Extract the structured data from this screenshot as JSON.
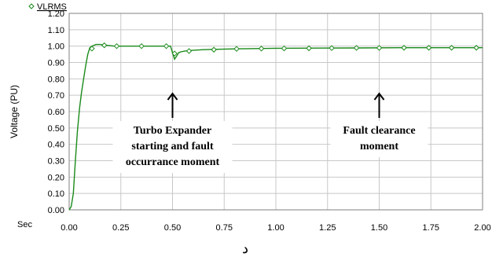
{
  "chart_data": {
    "type": "line",
    "title": "",
    "xlabel": "Sec",
    "ylabel": "Voltage (PU)",
    "xlim": [
      0,
      2
    ],
    "ylim": [
      0,
      1.2
    ],
    "x_ticks": [
      "0.00",
      "0.25",
      "0.50",
      "0.75",
      "1.00",
      "1.25",
      "1.50",
      "1.75",
      "2.00"
    ],
    "y_ticks": [
      "0.00",
      "0.10",
      "0.20",
      "0.30",
      "0.40",
      "0.50",
      "0.60",
      "0.70",
      "0.80",
      "0.90",
      "1.00",
      "1.10",
      "1.20"
    ],
    "grid": true,
    "legend": "top-left",
    "series": [
      {
        "name": "VLRMS",
        "color": "#1a8a1a",
        "marker": "diamond-open",
        "x": [
          0,
          0.01,
          0.02,
          0.03,
          0.04,
          0.05,
          0.06,
          0.07,
          0.08,
          0.09,
          0.1,
          0.11,
          0.12,
          0.13,
          0.15,
          0.18,
          0.22,
          0.26,
          0.3,
          0.35,
          0.4,
          0.45,
          0.49,
          0.5,
          0.51,
          0.52,
          0.53,
          0.54,
          0.56,
          0.6,
          0.65,
          0.7,
          0.8,
          0.9,
          1.0,
          1.2,
          1.4,
          1.6,
          1.8,
          2.0
        ],
        "y": [
          0,
          0.02,
          0.1,
          0.3,
          0.48,
          0.62,
          0.72,
          0.8,
          0.88,
          0.95,
          0.99,
          1.0,
          1.005,
          1.01,
          1.01,
          1.005,
          1.0,
          1.0,
          1.0,
          1.0,
          1.0,
          1.0,
          1.0,
          0.96,
          0.92,
          0.94,
          0.96,
          0.965,
          0.97,
          0.975,
          0.978,
          0.98,
          0.983,
          0.985,
          0.987,
          0.988,
          0.989,
          0.99,
          0.99,
          0.99
        ]
      }
    ],
    "markers": {
      "x": [
        0.11,
        0.17,
        0.23,
        0.35,
        0.47,
        0.51,
        0.58,
        0.7,
        0.81,
        0.93,
        1.04,
        1.16,
        1.27,
        1.39,
        1.5,
        1.62,
        1.74,
        1.85,
        1.97
      ],
      "y": [
        0.985,
        1.005,
        1.0,
        1.0,
        1.0,
        0.955,
        0.97,
        0.978,
        0.983,
        0.985,
        0.986,
        0.987,
        0.988,
        0.989,
        0.989,
        0.99,
        0.99,
        0.99,
        0.99
      ]
    },
    "annotations": [
      {
        "lines": [
          "Turbo Expander",
          "starting and fault",
          "occurrance moment"
        ],
        "x": 0.5
      },
      {
        "lines": [
          "Fault clearance",
          "moment"
        ],
        "x": 1.5
      }
    ],
    "footer": "د"
  }
}
